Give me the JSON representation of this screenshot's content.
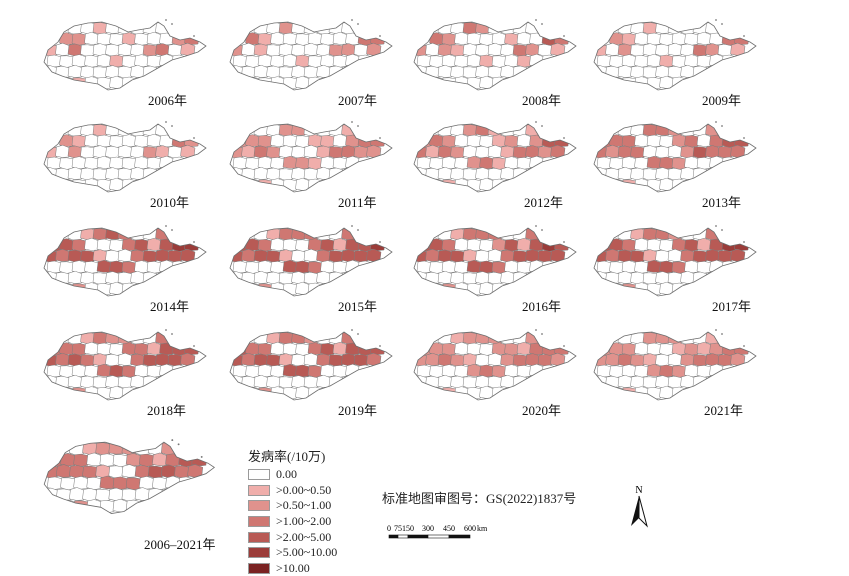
{
  "legend": {
    "title": "发病率(/10万)",
    "classes": [
      {
        "label": "0.00",
        "color": "#ffffff"
      },
      {
        "label": ">0.00~0.50",
        "color": "#f0aeab"
      },
      {
        "label": ">0.50~1.00",
        "color": "#e0928d"
      },
      {
        "label": ">1.00~2.00",
        "color": "#cf7772"
      },
      {
        "label": ">2.00~5.00",
        "color": "#b85a55"
      },
      {
        "label": ">5.00~10.00",
        "color": "#9b3c39"
      },
      {
        "label": ">10.00",
        "color": "#7a2222"
      }
    ]
  },
  "map_approval": "标准地图审图号：GS(2022)1837号",
  "scale": {
    "ticks": [
      "0",
      "75",
      "150",
      "300",
      "450",
      "600"
    ],
    "unit": "km"
  },
  "north_label": "N",
  "panels": [
    {
      "year": "2006年",
      "fill": [
        0,
        0,
        0,
        0,
        1,
        0,
        0,
        0,
        0,
        0,
        2,
        3,
        0,
        2,
        2,
        0,
        0,
        0,
        1,
        0,
        0,
        0,
        2,
        3,
        1,
        0,
        3,
        0,
        0,
        0,
        0,
        0,
        2,
        3,
        0,
        1,
        0,
        0,
        0,
        0,
        0,
        1,
        0,
        0,
        0,
        0,
        0,
        0,
        0,
        0,
        0,
        0,
        0,
        0,
        0,
        0,
        0,
        0,
        0,
        0,
        0,
        0,
        1,
        0,
        0,
        0,
        0,
        0,
        2,
        0,
        0,
        0
      ]
    },
    {
      "year": "2007年",
      "fill": [
        0,
        0,
        0,
        0,
        2,
        0,
        0,
        0,
        0,
        0,
        2,
        2,
        0,
        3,
        1,
        0,
        0,
        0,
        0,
        0,
        0,
        0,
        3,
        3,
        2,
        0,
        1,
        0,
        0,
        0,
        0,
        0,
        2,
        2,
        0,
        2,
        0,
        0,
        0,
        0,
        0,
        1,
        0,
        0,
        0,
        0,
        0,
        0,
        0,
        0,
        0,
        0,
        0,
        0,
        0,
        0,
        0,
        0,
        0,
        0,
        0,
        0,
        0,
        0,
        0,
        0,
        0,
        0,
        1,
        0,
        0,
        0
      ]
    },
    {
      "year": "2008年",
      "fill": [
        0,
        0,
        0,
        0,
        3,
        2,
        0,
        0,
        0,
        0,
        3,
        4,
        0,
        3,
        2,
        0,
        0,
        0,
        0,
        1,
        0,
        0,
        4,
        3,
        2,
        0,
        2,
        1,
        0,
        0,
        0,
        0,
        3,
        2,
        0,
        1,
        0,
        0,
        0,
        0,
        0,
        1,
        0,
        0,
        1,
        0,
        0,
        0,
        0,
        0,
        0,
        0,
        0,
        0,
        0,
        0,
        0,
        0,
        0,
        0,
        0,
        0,
        0,
        0,
        0,
        0,
        0,
        0,
        1,
        0,
        0,
        0
      ]
    },
    {
      "year": "2009年",
      "fill": [
        0,
        0,
        0,
        0,
        1,
        0,
        0,
        0,
        0,
        0,
        3,
        4,
        0,
        2,
        1,
        0,
        0,
        0,
        0,
        0,
        0,
        0,
        3,
        3,
        1,
        0,
        2,
        0,
        0,
        0,
        0,
        0,
        3,
        2,
        0,
        1,
        0,
        0,
        0,
        0,
        0,
        1,
        0,
        0,
        0,
        0,
        0,
        0,
        0,
        0,
        0,
        0,
        0,
        0,
        0,
        0,
        0,
        0,
        0,
        0,
        0,
        0,
        0,
        0,
        0,
        0,
        0,
        0,
        0,
        0,
        0,
        0
      ]
    },
    {
      "year": "2010年",
      "fill": [
        0,
        0,
        0,
        0,
        1,
        0,
        0,
        0,
        0,
        0,
        3,
        2,
        0,
        2,
        1,
        0,
        0,
        0,
        0,
        0,
        0,
        0,
        3,
        2,
        1,
        0,
        2,
        0,
        0,
        0,
        0,
        0,
        2,
        1,
        0,
        1,
        0,
        0,
        0,
        0,
        0,
        0,
        0,
        0,
        0,
        0,
        0,
        0,
        0,
        0,
        0,
        0,
        0,
        0,
        0,
        0,
        0,
        0,
        0,
        0,
        0,
        0,
        0,
        0,
        0,
        0,
        0,
        0,
        4,
        0,
        0,
        0
      ]
    },
    {
      "year": "2011年",
      "fill": [
        0,
        0,
        0,
        0,
        2,
        2,
        0,
        0,
        0,
        1,
        3,
        3,
        2,
        2,
        2,
        0,
        0,
        0,
        1,
        1,
        0,
        2,
        3,
        3,
        2,
        1,
        3,
        2,
        0,
        0,
        0,
        1,
        3,
        3,
        2,
        2,
        0,
        0,
        0,
        0,
        2,
        2,
        1,
        0,
        0,
        0,
        0,
        0,
        0,
        0,
        0,
        0,
        0,
        0,
        0,
        0,
        0,
        0,
        0,
        0,
        0,
        0,
        1,
        0,
        0,
        0,
        0,
        0,
        2,
        0,
        0,
        0
      ]
    },
    {
      "year": "2012年",
      "fill": [
        0,
        0,
        0,
        0,
        2,
        3,
        1,
        0,
        0,
        1,
        3,
        4,
        2,
        3,
        2,
        0,
        0,
        0,
        1,
        2,
        0,
        2,
        4,
        4,
        3,
        1,
        3,
        2,
        0,
        0,
        0,
        1,
        3,
        3,
        2,
        3,
        0,
        0,
        0,
        0,
        2,
        3,
        1,
        0,
        0,
        0,
        0,
        0,
        0,
        0,
        0,
        0,
        0,
        0,
        0,
        0,
        0,
        0,
        0,
        0,
        0,
        0,
        1,
        0,
        0,
        0,
        0,
        0,
        2,
        0,
        0,
        0
      ]
    },
    {
      "year": "2013年",
      "fill": [
        0,
        0,
        0,
        0,
        3,
        3,
        2,
        0,
        0,
        2,
        4,
        4,
        3,
        3,
        3,
        0,
        0,
        0,
        2,
        3,
        0,
        3,
        4,
        4,
        3,
        2,
        3,
        3,
        0,
        0,
        0,
        2,
        4,
        3,
        3,
        3,
        0,
        0,
        0,
        0,
        3,
        3,
        2,
        0,
        0,
        0,
        0,
        0,
        0,
        0,
        0,
        0,
        0,
        0,
        0,
        0,
        0,
        0,
        0,
        0,
        0,
        0,
        1,
        0,
        0,
        0,
        0,
        0,
        5,
        0,
        0,
        0
      ]
    },
    {
      "year": "2014年",
      "fill": [
        0,
        0,
        0,
        1,
        3,
        4,
        3,
        0,
        0,
        3,
        4,
        5,
        4,
        4,
        3,
        0,
        0,
        0,
        3,
        4,
        1,
        4,
        5,
        5,
        4,
        3,
        4,
        4,
        1,
        0,
        0,
        3,
        4,
        4,
        4,
        4,
        0,
        0,
        0,
        0,
        4,
        4,
        3,
        0,
        0,
        0,
        0,
        0,
        0,
        0,
        0,
        0,
        0,
        0,
        0,
        0,
        0,
        0,
        0,
        0,
        0,
        0,
        2,
        0,
        0,
        0,
        0,
        0,
        6,
        0,
        0,
        0
      ]
    },
    {
      "year": "2015年",
      "fill": [
        0,
        0,
        0,
        1,
        3,
        3,
        3,
        0,
        0,
        3,
        4,
        4,
        4,
        4,
        3,
        0,
        0,
        0,
        3,
        4,
        1,
        4,
        4,
        5,
        4,
        3,
        4,
        4,
        1,
        0,
        0,
        3,
        4,
        4,
        4,
        4,
        0,
        0,
        0,
        0,
        4,
        4,
        3,
        0,
        0,
        0,
        0,
        0,
        0,
        0,
        0,
        0,
        0,
        0,
        0,
        0,
        0,
        0,
        0,
        0,
        0,
        0,
        2,
        0,
        0,
        0,
        0,
        0,
        5,
        0,
        0,
        0
      ]
    },
    {
      "year": "2016年",
      "fill": [
        0,
        0,
        0,
        1,
        3,
        3,
        3,
        0,
        0,
        3,
        4,
        5,
        4,
        4,
        3,
        0,
        0,
        0,
        2,
        4,
        1,
        4,
        5,
        4,
        4,
        3,
        4,
        4,
        1,
        0,
        0,
        3,
        4,
        4,
        4,
        4,
        0,
        0,
        0,
        0,
        4,
        4,
        3,
        0,
        0,
        0,
        0,
        0,
        0,
        0,
        0,
        0,
        0,
        0,
        0,
        0,
        0,
        0,
        0,
        0,
        0,
        0,
        2,
        0,
        0,
        0,
        0,
        0,
        3,
        0,
        0,
        0
      ]
    },
    {
      "year": "2017年",
      "fill": [
        0,
        0,
        0,
        1,
        3,
        3,
        2,
        0,
        0,
        3,
        4,
        5,
        4,
        4,
        3,
        0,
        0,
        0,
        3,
        4,
        1,
        4,
        5,
        5,
        4,
        3,
        4,
        4,
        1,
        0,
        0,
        3,
        4,
        4,
        4,
        4,
        0,
        0,
        0,
        0,
        4,
        4,
        3,
        0,
        0,
        0,
        0,
        0,
        0,
        0,
        0,
        0,
        0,
        0,
        0,
        0,
        0,
        0,
        0,
        0,
        0,
        0,
        2,
        0,
        0,
        0,
        0,
        0,
        1,
        0,
        0,
        0
      ]
    },
    {
      "year": "2018年",
      "fill": [
        0,
        0,
        0,
        1,
        3,
        2,
        2,
        0,
        0,
        3,
        4,
        4,
        3,
        3,
        3,
        0,
        0,
        0,
        3,
        3,
        1,
        4,
        4,
        4,
        4,
        3,
        4,
        3,
        1,
        0,
        0,
        3,
        4,
        4,
        4,
        3,
        0,
        0,
        0,
        0,
        3,
        4,
        3,
        0,
        0,
        0,
        0,
        0,
        0,
        0,
        0,
        0,
        0,
        0,
        0,
        0,
        0,
        0,
        0,
        0,
        0,
        0,
        2,
        0,
        0,
        0,
        0,
        0,
        2,
        0,
        0,
        0
      ]
    },
    {
      "year": "2019年",
      "fill": [
        0,
        0,
        0,
        1,
        3,
        3,
        2,
        0,
        0,
        3,
        4,
        4,
        4,
        3,
        3,
        0,
        0,
        0,
        3,
        4,
        1,
        4,
        4,
        4,
        4,
        3,
        4,
        4,
        1,
        0,
        0,
        3,
        4,
        4,
        4,
        3,
        0,
        0,
        0,
        0,
        4,
        4,
        3,
        0,
        0,
        0,
        0,
        0,
        0,
        0,
        0,
        0,
        0,
        0,
        0,
        0,
        0,
        0,
        0,
        0,
        0,
        0,
        2,
        0,
        0,
        0,
        0,
        0,
        2,
        0,
        0,
        0
      ]
    },
    {
      "year": "2020年",
      "fill": [
        0,
        0,
        0,
        1,
        2,
        2,
        2,
        0,
        0,
        2,
        3,
        3,
        2,
        2,
        2,
        0,
        0,
        0,
        2,
        2,
        1,
        3,
        3,
        3,
        2,
        2,
        3,
        2,
        1,
        0,
        0,
        2,
        3,
        3,
        3,
        2,
        0,
        0,
        0,
        0,
        2,
        3,
        2,
        0,
        0,
        0,
        0,
        0,
        0,
        0,
        0,
        0,
        0,
        0,
        0,
        0,
        0,
        0,
        0,
        0,
        0,
        0,
        1,
        0,
        0,
        0,
        0,
        0,
        1,
        0,
        0,
        0
      ]
    },
    {
      "year": "2021年",
      "fill": [
        0,
        0,
        0,
        0,
        2,
        2,
        2,
        0,
        0,
        1,
        2,
        3,
        2,
        2,
        2,
        0,
        0,
        0,
        1,
        2,
        1,
        2,
        3,
        3,
        2,
        2,
        3,
        2,
        1,
        0,
        0,
        2,
        3,
        3,
        3,
        2,
        0,
        0,
        0,
        0,
        2,
        3,
        2,
        0,
        0,
        0,
        0,
        0,
        0,
        0,
        0,
        0,
        0,
        0,
        0,
        0,
        0,
        0,
        0,
        0,
        0,
        0,
        1,
        0,
        0,
        0,
        0,
        0,
        1,
        0,
        0,
        0
      ]
    },
    {
      "year": "2006–2021年",
      "fill": [
        0,
        0,
        0,
        1,
        2,
        2,
        2,
        0,
        0,
        2,
        3,
        3,
        3,
        3,
        3,
        0,
        0,
        0,
        2,
        3,
        1,
        3,
        4,
        4,
        3,
        3,
        3,
        3,
        1,
        0,
        0,
        3,
        4,
        4,
        3,
        3,
        0,
        0,
        0,
        0,
        3,
        3,
        3,
        0,
        0,
        0,
        0,
        0,
        0,
        0,
        0,
        0,
        0,
        0,
        0,
        0,
        0,
        0,
        0,
        0,
        0,
        0,
        2,
        0,
        0,
        0,
        0,
        0,
        3,
        0,
        0,
        0
      ]
    }
  ]
}
